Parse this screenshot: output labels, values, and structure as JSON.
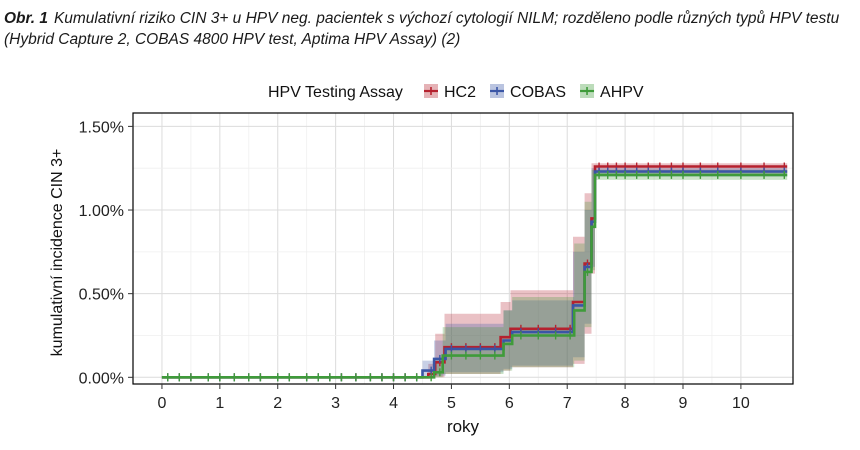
{
  "caption": {
    "label": "Obr. 1",
    "text": "Kumulativní riziko CIN 3+ u HPV neg. pacientek s výchozí cytologií NILM; rozděleno podle různých typů HPV testu (Hybrid Capture 2, COBAS 4800 HPV test, Aptima HPV Assay) (2)"
  },
  "chart_data": {
    "type": "line",
    "subtype": "step-cumulative-incidence",
    "title": "",
    "xlabel": "roky",
    "ylabel": "kumulativní incidence CIN 3+",
    "xlim": [
      -0.5,
      10.9
    ],
    "ylim": [
      -0.04,
      1.58
    ],
    "xticks": [
      0,
      1,
      2,
      3,
      4,
      5,
      6,
      7,
      8,
      9,
      10
    ],
    "xtick_labels": [
      "0",
      "1",
      "2",
      "3",
      "4",
      "5",
      "6",
      "7",
      "8",
      "9",
      "10"
    ],
    "yticks": [
      0,
      0.5,
      1.0,
      1.5
    ],
    "ytick_labels": [
      "0.00%",
      "0.50%",
      "1.00%",
      "1.50%"
    ],
    "grid": true,
    "legend": {
      "title": "HPV Testing Assay",
      "position": "top"
    },
    "series": [
      {
        "name": "HC2",
        "color": "#b5212e",
        "steps": [
          [
            0,
            0
          ],
          [
            4.6,
            0.02
          ],
          [
            4.72,
            0.09
          ],
          [
            4.88,
            0.18
          ],
          [
            5.85,
            0.24
          ],
          [
            6.02,
            0.29
          ],
          [
            7.1,
            0.45
          ],
          [
            7.3,
            0.68
          ],
          [
            7.42,
            0.95
          ],
          [
            7.48,
            1.26
          ],
          [
            10.8,
            1.26
          ]
        ],
        "ci_upper": [
          [
            0,
            0
          ],
          [
            4.6,
            0.08
          ],
          [
            4.72,
            0.26
          ],
          [
            4.88,
            0.38
          ],
          [
            5.85,
            0.45
          ],
          [
            6.02,
            0.52
          ],
          [
            7.1,
            0.84
          ],
          [
            7.3,
            1.1
          ],
          [
            7.42,
            1.28
          ],
          [
            7.48,
            1.28
          ],
          [
            10.8,
            1.28
          ]
        ],
        "ci_lower": [
          [
            0,
            0
          ],
          [
            4.6,
            0
          ],
          [
            4.72,
            0
          ],
          [
            4.88,
            0.02
          ],
          [
            5.85,
            0.04
          ],
          [
            6.02,
            0.06
          ],
          [
            7.1,
            0.08
          ],
          [
            7.3,
            0.26
          ],
          [
            7.42,
            0.62
          ],
          [
            7.48,
            1.22
          ],
          [
            10.8,
            1.22
          ]
        ]
      },
      {
        "name": "COBAS",
        "color": "#3a56a6",
        "steps": [
          [
            0,
            0
          ],
          [
            4.5,
            0.04
          ],
          [
            4.7,
            0.11
          ],
          [
            4.9,
            0.17
          ],
          [
            5.9,
            0.22
          ],
          [
            6.05,
            0.27
          ],
          [
            7.1,
            0.43
          ],
          [
            7.3,
            0.66
          ],
          [
            7.42,
            0.93
          ],
          [
            7.48,
            1.23
          ],
          [
            10.8,
            1.23
          ]
        ],
        "ci_upper": [
          [
            0,
            0
          ],
          [
            4.5,
            0.1
          ],
          [
            4.7,
            0.22
          ],
          [
            4.9,
            0.32
          ],
          [
            5.9,
            0.4
          ],
          [
            6.05,
            0.46
          ],
          [
            7.1,
            0.75
          ],
          [
            7.3,
            1.0
          ],
          [
            7.42,
            1.25
          ],
          [
            7.48,
            1.25
          ],
          [
            10.8,
            1.25
          ]
        ],
        "ci_lower": [
          [
            0,
            0
          ],
          [
            4.5,
            0
          ],
          [
            4.7,
            0.01
          ],
          [
            4.9,
            0.03
          ],
          [
            5.9,
            0.05
          ],
          [
            6.05,
            0.07
          ],
          [
            7.1,
            0.12
          ],
          [
            7.3,
            0.32
          ],
          [
            7.42,
            0.66
          ],
          [
            7.48,
            1.2
          ],
          [
            10.8,
            1.2
          ]
        ]
      },
      {
        "name": "AHPV",
        "color": "#3f9b3a",
        "steps": [
          [
            0,
            0
          ],
          [
            4.7,
            0.03
          ],
          [
            4.85,
            0.13
          ],
          [
            5.9,
            0.2
          ],
          [
            6.05,
            0.25
          ],
          [
            7.12,
            0.4
          ],
          [
            7.3,
            0.63
          ],
          [
            7.42,
            0.9
          ],
          [
            7.48,
            1.21
          ],
          [
            10.8,
            1.21
          ]
        ],
        "ci_upper": [
          [
            0,
            0
          ],
          [
            4.7,
            0.1
          ],
          [
            4.85,
            0.3
          ],
          [
            5.9,
            0.4
          ],
          [
            6.05,
            0.48
          ],
          [
            7.12,
            0.8
          ],
          [
            7.3,
            1.05
          ],
          [
            7.42,
            1.24
          ],
          [
            7.48,
            1.24
          ],
          [
            10.8,
            1.24
          ]
        ],
        "ci_lower": [
          [
            0,
            0
          ],
          [
            4.7,
            0
          ],
          [
            4.85,
            0.02
          ],
          [
            5.9,
            0.04
          ],
          [
            6.05,
            0.06
          ],
          [
            7.12,
            0.1
          ],
          [
            7.3,
            0.3
          ],
          [
            7.42,
            0.64
          ],
          [
            7.48,
            1.18
          ],
          [
            10.8,
            1.18
          ]
        ]
      }
    ],
    "censor_x": [
      0.1,
      0.3,
      0.5,
      0.8,
      1.0,
      1.25,
      1.5,
      1.7,
      2.0,
      2.2,
      2.5,
      2.7,
      2.9,
      3.1,
      3.35,
      3.6,
      3.8,
      4.0,
      4.2,
      4.4,
      4.65,
      4.8,
      5.0,
      5.25,
      5.5,
      5.75,
      6.2,
      6.5,
      6.8,
      7.05,
      7.35,
      7.55,
      7.7,
      7.85,
      8.0,
      8.2,
      8.4,
      8.6,
      8.8,
      9.0,
      9.3,
      9.6,
      10.0,
      10.4,
      10.75
    ]
  }
}
